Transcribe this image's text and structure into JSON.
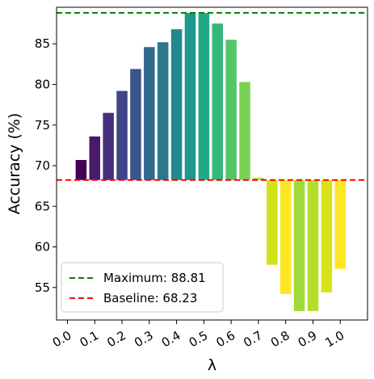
{
  "chart_data": {
    "type": "bar",
    "xlabel": "λ",
    "ylabel": "Accuracy (%)",
    "x_tick_labels": [
      "0.0",
      "0.1",
      "0.2",
      "0.3",
      "0.4",
      "0.5",
      "0.6",
      "0.7",
      "0.8",
      "0.9",
      "1.0"
    ],
    "x_ticks": [
      0.0,
      0.1,
      0.2,
      0.3,
      0.4,
      0.5,
      0.6,
      0.7,
      0.8,
      0.9,
      1.0
    ],
    "bar_x": [
      0.05,
      0.1,
      0.15,
      0.2,
      0.25,
      0.3,
      0.35,
      0.4,
      0.45,
      0.5,
      0.55,
      0.6,
      0.65,
      0.7,
      0.75,
      0.8,
      0.85,
      0.9,
      0.95,
      1.0
    ],
    "bar_values": [
      70.7,
      73.6,
      76.5,
      79.2,
      81.9,
      84.6,
      85.2,
      86.8,
      88.8,
      88.8,
      87.5,
      85.5,
      80.3,
      68.5,
      57.8,
      54.2,
      52.1,
      52.1,
      54.4,
      57.3
    ],
    "bar_colors": [
      "#440154",
      "#481a6c",
      "#472f7d",
      "#414487",
      "#39568c",
      "#31688e",
      "#2a788e",
      "#23888e",
      "#1f988b",
      "#22a884",
      "#35b779",
      "#54c568",
      "#7ad151",
      "#a5db36",
      "#d2e21b",
      "#fde725",
      "#9fda3a",
      "#b5de2b",
      "#d8e219",
      "#fde725"
    ],
    "bar_base": 68.23,
    "ylim": [
      51.0,
      89.5
    ],
    "y_ticks": [
      55,
      60,
      65,
      70,
      75,
      80,
      85
    ],
    "x_axis_range": [
      -0.04,
      1.1
    ],
    "lines": [
      {
        "label": "Maximum: 88.81",
        "value": 88.81,
        "color": "#008000",
        "style": "dashed"
      },
      {
        "label": "Baseline: 68.23",
        "value": 68.23,
        "color": "#ff0000",
        "style": "dashed"
      }
    ],
    "legend_position": "lower-left",
    "grid": false
  }
}
